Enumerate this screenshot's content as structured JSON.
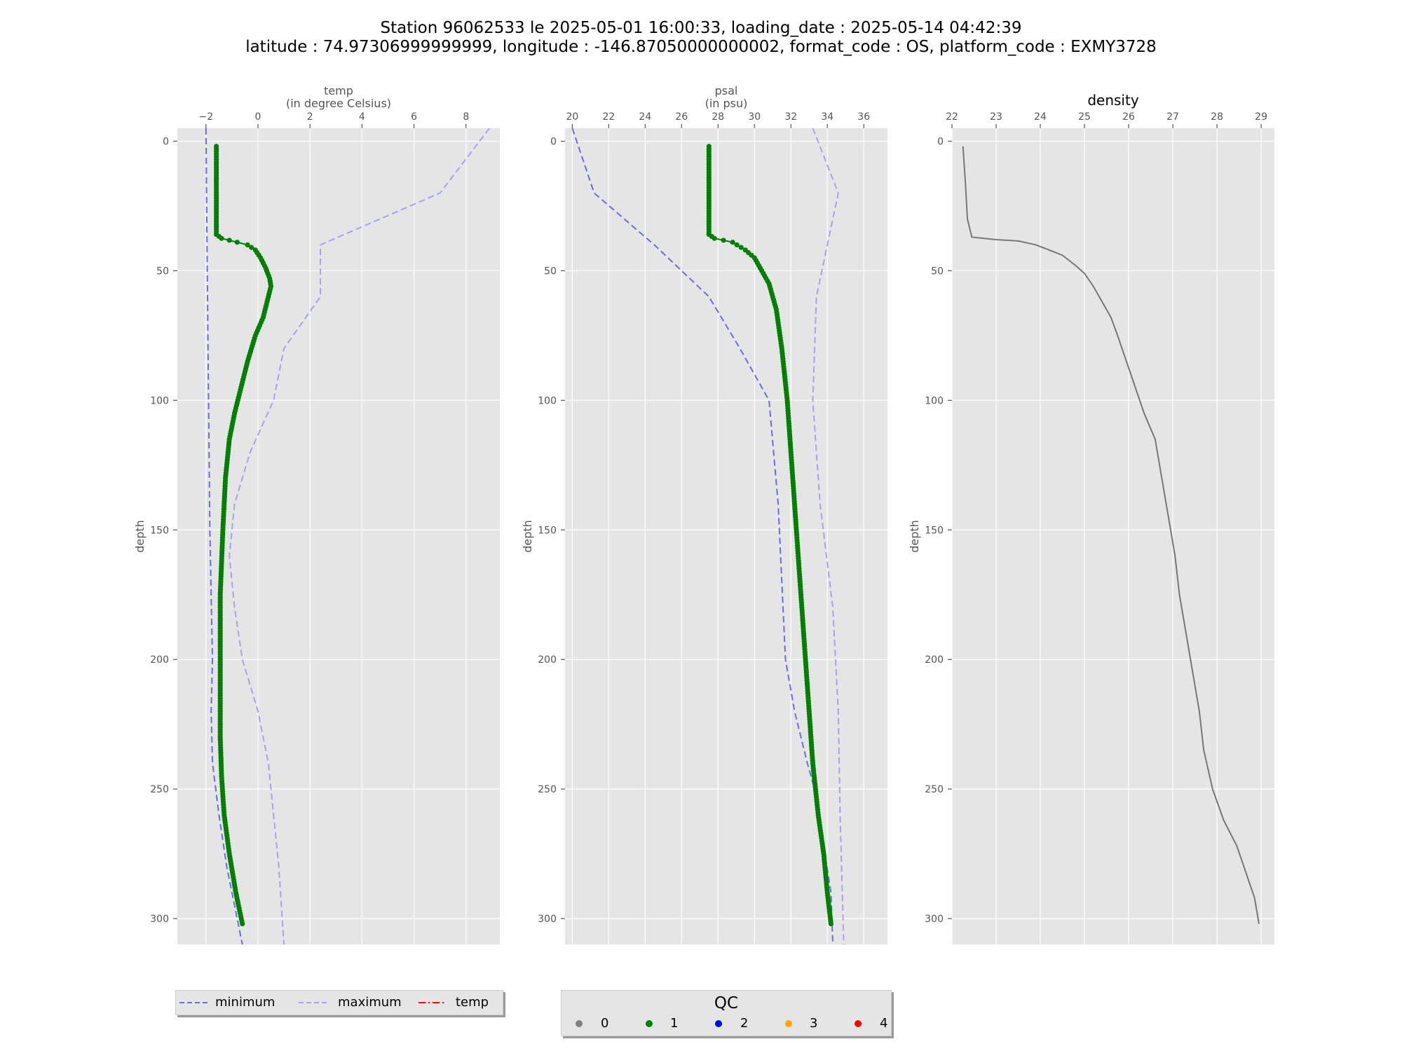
{
  "title": {
    "line1": "Station 96062533 le 2025-05-01 16:00:33, loading_date : 2025-05-14 04:42:39",
    "line2": "latitude : 74.97306999999999, longitude : -146.87050000000002, format_code : OS, platform_code : EXMY3728"
  },
  "colors": {
    "panel_bg": "#e5e5e5",
    "grid": "#ffffff",
    "minimum": "#6a6af0",
    "maximum": "#a3a3f2",
    "observed": "#008000",
    "density": "#777777",
    "qc0": "#808080",
    "qc1": "#008000",
    "qc2": "#0000ff",
    "qc3": "#ffa500",
    "qc4": "#ff0000"
  },
  "chart_data": [
    {
      "type": "line",
      "id": "temp",
      "title": "temp",
      "subtitle": "(in degree Celsius)",
      "xlabel": "temp",
      "ylabel": "depth",
      "xlim": [
        -3.1,
        9.3
      ],
      "ylim": [
        310,
        -5
      ],
      "x_ticks": [
        -2,
        0,
        2,
        4,
        6,
        8
      ],
      "x_tick_labels": [
        "−2",
        "0",
        "2",
        "4",
        "6",
        "8"
      ],
      "y_ticks": [
        0,
        50,
        100,
        150,
        200,
        250,
        300
      ],
      "y_tick_labels": [
        "0",
        "50",
        "100",
        "150",
        "200",
        "250",
        "300"
      ],
      "grid": true,
      "series": [
        {
          "name": "minimum",
          "style": "dashed",
          "points": [
            [
              -2.0,
              -5
            ],
            [
              -1.95,
              50
            ],
            [
              -1.9,
              100
            ],
            [
              -1.85,
              150
            ],
            [
              -1.75,
              200
            ],
            [
              -1.8,
              220
            ],
            [
              -1.75,
              240
            ],
            [
              -1.5,
              260
            ],
            [
              -1.2,
              280
            ],
            [
              -0.6,
              310
            ]
          ]
        },
        {
          "name": "maximum",
          "style": "dashed",
          "points": [
            [
              8.9,
              -5
            ],
            [
              7.0,
              20
            ],
            [
              2.4,
              40
            ],
            [
              2.4,
              60
            ],
            [
              1.0,
              80
            ],
            [
              0.6,
              100
            ],
            [
              -0.3,
              120
            ],
            [
              -0.9,
              140
            ],
            [
              -1.1,
              160
            ],
            [
              -0.9,
              180
            ],
            [
              -0.6,
              200
            ],
            [
              0.0,
              220
            ],
            [
              0.4,
              240
            ],
            [
              0.6,
              260
            ],
            [
              0.8,
              280
            ],
            [
              1.0,
              310
            ]
          ]
        },
        {
          "name": "temp",
          "qc": 1,
          "style": "dots",
          "points": [
            [
              -1.6,
              2
            ],
            [
              -1.6,
              10
            ],
            [
              -1.6,
              20
            ],
            [
              -1.6,
              30
            ],
            [
              -1.6,
              36
            ],
            [
              -1.4,
              37.5
            ],
            [
              -0.8,
              39
            ],
            [
              -0.4,
              40
            ],
            [
              -0.1,
              42
            ],
            [
              0.1,
              45
            ],
            [
              0.3,
              49
            ],
            [
              0.45,
              53
            ],
            [
              0.5,
              56
            ],
            [
              0.35,
              62
            ],
            [
              0.2,
              68
            ],
            [
              -0.1,
              75
            ],
            [
              -0.4,
              85
            ],
            [
              -0.65,
              95
            ],
            [
              -0.9,
              105
            ],
            [
              -1.1,
              115
            ],
            [
              -1.25,
              130
            ],
            [
              -1.35,
              150
            ],
            [
              -1.45,
              175
            ],
            [
              -1.45,
              200
            ],
            [
              -1.45,
              215
            ],
            [
              -1.45,
              230
            ],
            [
              -1.4,
              245
            ],
            [
              -1.3,
              260
            ],
            [
              -1.1,
              275
            ],
            [
              -0.85,
              290
            ],
            [
              -0.6,
              302
            ]
          ]
        }
      ]
    },
    {
      "type": "line",
      "id": "psal",
      "title": "psal",
      "subtitle": "(in psu)",
      "xlabel": "psal",
      "ylabel": "depth",
      "xlim": [
        19.6,
        37.3
      ],
      "ylim": [
        310,
        -5
      ],
      "x_ticks": [
        20,
        22,
        24,
        26,
        28,
        30,
        32,
        34,
        36
      ],
      "x_tick_labels": [
        "20",
        "22",
        "24",
        "26",
        "28",
        "30",
        "32",
        "34",
        "36"
      ],
      "y_ticks": [
        0,
        50,
        100,
        150,
        200,
        250,
        300
      ],
      "y_tick_labels": [
        "0",
        "50",
        "100",
        "150",
        "200",
        "250",
        "300"
      ],
      "grid": true,
      "series": [
        {
          "name": "minimum",
          "style": "dashed",
          "points": [
            [
              20.0,
              -5
            ],
            [
              21.2,
              20
            ],
            [
              24.5,
              40
            ],
            [
              27.5,
              60
            ],
            [
              29.2,
              80
            ],
            [
              30.8,
              100
            ],
            [
              31.3,
              140
            ],
            [
              31.5,
              170
            ],
            [
              31.7,
              200
            ],
            [
              32.2,
              220
            ],
            [
              32.9,
              240
            ],
            [
              33.3,
              250
            ],
            [
              34.2,
              290
            ],
            [
              34.3,
              310
            ]
          ]
        },
        {
          "name": "maximum",
          "style": "dashed",
          "points": [
            [
              33.2,
              -5
            ],
            [
              34.6,
              20
            ],
            [
              34.0,
              40
            ],
            [
              33.4,
              60
            ],
            [
              33.3,
              80
            ],
            [
              33.2,
              100
            ],
            [
              33.6,
              140
            ],
            [
              34.3,
              180
            ],
            [
              34.6,
              220
            ],
            [
              34.7,
              260
            ],
            [
              34.9,
              310
            ]
          ]
        },
        {
          "name": "psal",
          "qc": 1,
          "style": "dots",
          "points": [
            [
              27.5,
              2
            ],
            [
              27.5,
              10
            ],
            [
              27.5,
              20
            ],
            [
              27.5,
              30
            ],
            [
              27.5,
              36
            ],
            [
              27.8,
              37.5
            ],
            [
              28.8,
              39
            ],
            [
              29.5,
              42
            ],
            [
              30.0,
              45
            ],
            [
              30.4,
              50
            ],
            [
              30.8,
              55
            ],
            [
              31.2,
              65
            ],
            [
              31.5,
              80
            ],
            [
              31.8,
              100
            ],
            [
              32.0,
              120
            ],
            [
              32.2,
              140
            ],
            [
              32.4,
              160
            ],
            [
              32.6,
              180
            ],
            [
              32.8,
              200
            ],
            [
              33.0,
              220
            ],
            [
              33.2,
              240
            ],
            [
              33.5,
              260
            ],
            [
              33.8,
              275
            ],
            [
              34.0,
              290
            ],
            [
              34.2,
              302
            ]
          ]
        }
      ]
    },
    {
      "type": "line",
      "id": "density",
      "title": "density",
      "xlabel": "density",
      "ylabel": "depth",
      "xlim": [
        22.0,
        29.3
      ],
      "ylim": [
        310,
        -5
      ],
      "x_ticks": [
        22,
        23,
        24,
        25,
        26,
        27,
        28,
        29
      ],
      "x_tick_labels": [
        "22",
        "23",
        "24",
        "25",
        "26",
        "27",
        "28",
        "29"
      ],
      "y_ticks": [
        0,
        50,
        100,
        150,
        200,
        250,
        300
      ],
      "y_tick_labels": [
        "0",
        "50",
        "100",
        "150",
        "200",
        "250",
        "300"
      ],
      "grid": true,
      "series": [
        {
          "name": "density",
          "style": "solid",
          "points": [
            [
              22.25,
              2
            ],
            [
              22.3,
              15
            ],
            [
              22.35,
              30
            ],
            [
              22.45,
              37
            ],
            [
              23.0,
              38
            ],
            [
              23.5,
              38.5
            ],
            [
              23.9,
              40
            ],
            [
              24.2,
              42
            ],
            [
              24.5,
              44
            ],
            [
              24.8,
              48
            ],
            [
              25.0,
              51
            ],
            [
              25.2,
              56
            ],
            [
              25.4,
              62
            ],
            [
              25.6,
              68
            ],
            [
              25.75,
              75
            ],
            [
              25.95,
              85
            ],
            [
              26.15,
              95
            ],
            [
              26.35,
              105
            ],
            [
              26.6,
              115
            ],
            [
              26.75,
              130
            ],
            [
              26.9,
              145
            ],
            [
              27.05,
              160
            ],
            [
              27.15,
              175
            ],
            [
              27.3,
              190
            ],
            [
              27.45,
              205
            ],
            [
              27.6,
              220
            ],
            [
              27.7,
              235
            ],
            [
              27.9,
              250
            ],
            [
              28.15,
              262
            ],
            [
              28.45,
              272
            ],
            [
              28.65,
              282
            ],
            [
              28.85,
              292
            ],
            [
              28.95,
              302
            ]
          ]
        }
      ]
    }
  ],
  "legend_left": {
    "entries": [
      {
        "label": "minimum",
        "style": "dashed",
        "color_key": "minimum"
      },
      {
        "label": "maximum",
        "style": "dashed",
        "color_key": "maximum"
      },
      {
        "label": "temp",
        "style": "dashdot",
        "color_key": "qc4"
      }
    ]
  },
  "legend_qc": {
    "title": "QC",
    "entries": [
      {
        "label": "0",
        "color_key": "qc0"
      },
      {
        "label": "1",
        "color_key": "qc1"
      },
      {
        "label": "2",
        "color_key": "qc2"
      },
      {
        "label": "3",
        "color_key": "qc3"
      },
      {
        "label": "4",
        "color_key": "qc4"
      }
    ]
  }
}
